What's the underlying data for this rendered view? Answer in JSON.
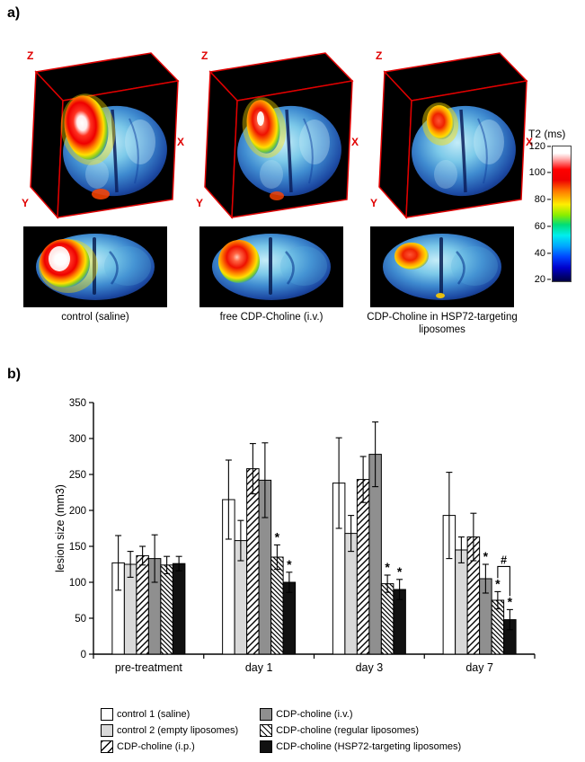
{
  "panel_a": {
    "label": "a)",
    "axes": {
      "z": "Z",
      "x": "X",
      "y": "Y"
    },
    "columns": [
      {
        "caption": "control (saline)"
      },
      {
        "caption": "free CDP-Choline (i.v.)"
      },
      {
        "caption": "CDP-Choline in HSP72-targeting liposomes"
      }
    ],
    "colorbar": {
      "title": "T2 (ms)",
      "ticks": [
        "120",
        "100",
        "80",
        "60",
        "40",
        "20"
      ]
    }
  },
  "panel_b": {
    "label": "b)"
  },
  "chart_data": {
    "type": "bar",
    "title": "",
    "xlabel": "",
    "ylabel": "lesion size (mm3)",
    "ylim": [
      0,
      350
    ],
    "ytick_interval": 50,
    "grid": false,
    "legend_position": "bottom",
    "categories": [
      "pre-treatment",
      "day 1",
      "day 3",
      "day 7"
    ],
    "series": [
      {
        "name": "control 1 (saline)",
        "style": "white",
        "values": [
          127,
          215,
          238,
          193
        ],
        "errors": [
          38,
          55,
          63,
          60
        ]
      },
      {
        "name": "control 2 (empty liposomes)",
        "style": "lightgray",
        "values": [
          125,
          158,
          168,
          145
        ],
        "errors": [
          18,
          28,
          25,
          18
        ]
      },
      {
        "name": "CDP-choline (i.p.)",
        "style": "hatch-forward",
        "values": [
          137,
          258,
          243,
          163
        ],
        "errors": [
          13,
          35,
          32,
          33
        ]
      },
      {
        "name": "CDP-choline (i.v.)",
        "style": "gray",
        "values": [
          133,
          242,
          278,
          105
        ],
        "errors": [
          33,
          52,
          45,
          20
        ]
      },
      {
        "name": "CDP-choline (regular liposomes)",
        "style": "hatch-back",
        "values": [
          124,
          135,
          98,
          75
        ],
        "errors": [
          12,
          17,
          12,
          12
        ]
      },
      {
        "name": "CDP-choline (HSP72-targeting liposomes)",
        "style": "black",
        "values": [
          126,
          100,
          90,
          48
        ],
        "errors": [
          10,
          14,
          14,
          14
        ]
      }
    ],
    "significance": [
      {
        "category": 1,
        "series": 4,
        "marker": "*"
      },
      {
        "category": 1,
        "series": 5,
        "marker": "*"
      },
      {
        "category": 2,
        "series": 4,
        "marker": "*"
      },
      {
        "category": 2,
        "series": 5,
        "marker": "*"
      },
      {
        "category": 3,
        "series": 3,
        "marker": "*"
      },
      {
        "category": 3,
        "series": 4,
        "marker": "*"
      },
      {
        "category": 3,
        "series": 5,
        "marker": "*"
      }
    ],
    "bracket": {
      "category": 3,
      "series_from": 4,
      "series_to": 5,
      "marker": "#"
    }
  }
}
